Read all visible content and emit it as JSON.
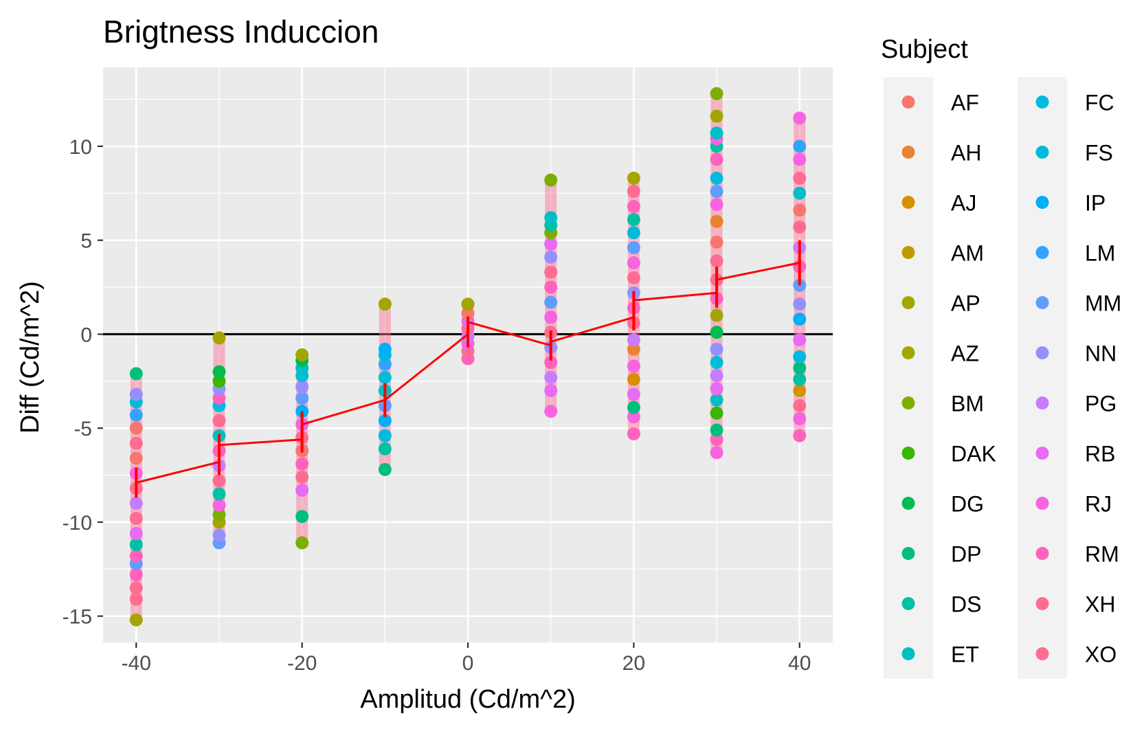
{
  "chart_data": {
    "type": "scatter",
    "title": "Brigtness Induccion",
    "xlabel": "Amplitud (Cd/m^2)",
    "ylabel": "Diff (Cd/m^2)",
    "xlim": [
      -44,
      44
    ],
    "ylim": [
      -16.4,
      14.2
    ],
    "x_ticks": [
      -40,
      -20,
      0,
      20,
      40
    ],
    "x_minor": [
      -30,
      -10,
      10,
      30
    ],
    "y_ticks": [
      -15,
      -10,
      -5,
      0,
      5,
      10
    ],
    "grid": true,
    "panel_background": "#EBEBEB",
    "reference_line": {
      "y": 0,
      "color": "#000000"
    },
    "legend": {
      "title": "Subject",
      "position": "right",
      "columns": 2,
      "entries": [
        {
          "name": "AF",
          "color": "#F8766D"
        },
        {
          "name": "AH",
          "color": "#EA8331"
        },
        {
          "name": "AJ",
          "color": "#D89000"
        },
        {
          "name": "AM",
          "color": "#C09B00"
        },
        {
          "name": "AP",
          "color": "#A3A500"
        },
        {
          "name": "AZ",
          "color": "#A3A500"
        },
        {
          "name": "BM",
          "color": "#7CAE00"
        },
        {
          "name": "DAK",
          "color": "#39B600"
        },
        {
          "name": "DG",
          "color": "#00BB4E"
        },
        {
          "name": "DP",
          "color": "#00BF7D"
        },
        {
          "name": "DS",
          "color": "#00C1A3"
        },
        {
          "name": "ET",
          "color": "#00BFC4"
        },
        {
          "name": "FC",
          "color": "#00BAE0"
        },
        {
          "name": "FS",
          "color": "#00BCD8"
        },
        {
          "name": "IP",
          "color": "#00B0F6"
        },
        {
          "name": "LM",
          "color": "#35A2FF"
        },
        {
          "name": "MM",
          "color": "#619CFF"
        },
        {
          "name": "NN",
          "color": "#9590FF"
        },
        {
          "name": "PG",
          "color": "#C77CFF"
        },
        {
          "name": "RB",
          "color": "#E76BF3"
        },
        {
          "name": "RJ",
          "color": "#F763E0"
        },
        {
          "name": "RM",
          "color": "#FF62BC"
        },
        {
          "name": "XH",
          "color": "#FF6C91"
        },
        {
          "name": "XO",
          "color": "#FF6C91"
        }
      ]
    },
    "mean_line": {
      "color": "#FF0000",
      "points": [
        {
          "x": -40,
          "y": -7.9,
          "err": 0.8
        },
        {
          "x": -30,
          "y": -6.8,
          "err": 0.7
        },
        {
          "x": -30,
          "y": -5.9,
          "err": 0.6
        },
        {
          "x": -20,
          "y": -5.6,
          "err": 0.7
        },
        {
          "x": -20,
          "y": -4.8,
          "err": 0.7
        },
        {
          "x": -10,
          "y": -3.5,
          "err": 0.9
        },
        {
          "x": 0,
          "y": 0.0,
          "err": 0.7
        },
        {
          "x": 0,
          "y": 0.65,
          "err": 0.3
        },
        {
          "x": 10,
          "y": -0.6,
          "err": 0.8
        },
        {
          "x": 10,
          "y": -0.4,
          "err": 0.6
        },
        {
          "x": 20,
          "y": 0.9,
          "err": 0.7
        },
        {
          "x": 20,
          "y": 1.8,
          "err": 0.5
        },
        {
          "x": 30,
          "y": 2.2,
          "err": 0.8
        },
        {
          "x": 30,
          "y": 2.9,
          "err": 0.7
        },
        {
          "x": 40,
          "y": 3.8,
          "err": 1.2
        }
      ]
    },
    "series_ranges": [
      {
        "x": -40,
        "min": -15.2,
        "max": -2.1
      },
      {
        "x": -30,
        "min": -11.1,
        "max": -0.2
      },
      {
        "x": -20,
        "min": -11.1,
        "max": -1.1
      },
      {
        "x": -10,
        "min": -7.2,
        "max": 1.6
      },
      {
        "x": 0,
        "min": -1.3,
        "max": 1.6
      },
      {
        "x": 10,
        "min": -4.1,
        "max": 8.2
      },
      {
        "x": 20,
        "min": -5.3,
        "max": 8.3
      },
      {
        "x": 30,
        "min": -6.3,
        "max": 12.8
      },
      {
        "x": 40,
        "min": -5.4,
        "max": 11.5
      }
    ],
    "points": [
      {
        "x": -40,
        "y": -15.2,
        "subject": "AZ"
      },
      {
        "x": -40,
        "y": -14.1,
        "subject": "XO"
      },
      {
        "x": -40,
        "y": -13.5,
        "subject": "XH"
      },
      {
        "x": -40,
        "y": -12.8,
        "subject": "RM"
      },
      {
        "x": -40,
        "y": -12.2,
        "subject": "MM"
      },
      {
        "x": -40,
        "y": -11.8,
        "subject": "RM"
      },
      {
        "x": -40,
        "y": -11.2,
        "subject": "DS"
      },
      {
        "x": -40,
        "y": -10.6,
        "subject": "RB"
      },
      {
        "x": -40,
        "y": -9.8,
        "subject": "XH"
      },
      {
        "x": -40,
        "y": -9.0,
        "subject": "PG"
      },
      {
        "x": -40,
        "y": -8.2,
        "subject": "XO"
      },
      {
        "x": -40,
        "y": -7.4,
        "subject": "RJ"
      },
      {
        "x": -40,
        "y": -6.6,
        "subject": "AF"
      },
      {
        "x": -40,
        "y": -5.8,
        "subject": "XH"
      },
      {
        "x": -40,
        "y": -5.0,
        "subject": "AF"
      },
      {
        "x": -40,
        "y": -4.3,
        "subject": "LM"
      },
      {
        "x": -40,
        "y": -3.6,
        "subject": "FS"
      },
      {
        "x": -40,
        "y": -3.2,
        "subject": "NN"
      },
      {
        "x": -40,
        "y": -2.1,
        "subject": "DP"
      },
      {
        "x": -30,
        "y": -11.1,
        "subject": "MM"
      },
      {
        "x": -30,
        "y": -10.7,
        "subject": "NN"
      },
      {
        "x": -30,
        "y": -10.0,
        "subject": "AZ"
      },
      {
        "x": -30,
        "y": -9.6,
        "subject": "BM"
      },
      {
        "x": -30,
        "y": -9.1,
        "subject": "RJ"
      },
      {
        "x": -30,
        "y": -8.5,
        "subject": "DS"
      },
      {
        "x": -30,
        "y": -7.8,
        "subject": "XH"
      },
      {
        "x": -30,
        "y": -7.0,
        "subject": "PG"
      },
      {
        "x": -30,
        "y": -6.2,
        "subject": "RM"
      },
      {
        "x": -30,
        "y": -5.4,
        "subject": "ET"
      },
      {
        "x": -30,
        "y": -4.6,
        "subject": "XO"
      },
      {
        "x": -30,
        "y": -3.8,
        "subject": "FC"
      },
      {
        "x": -30,
        "y": -3.4,
        "subject": "RM"
      },
      {
        "x": -30,
        "y": -2.9,
        "subject": "NN"
      },
      {
        "x": -30,
        "y": -2.5,
        "subject": "DAK"
      },
      {
        "x": -30,
        "y": -2.0,
        "subject": "DG"
      },
      {
        "x": -30,
        "y": -0.2,
        "subject": "AZ"
      },
      {
        "x": -20,
        "y": -11.1,
        "subject": "BM"
      },
      {
        "x": -20,
        "y": -9.7,
        "subject": "DP"
      },
      {
        "x": -20,
        "y": -8.3,
        "subject": "RB"
      },
      {
        "x": -20,
        "y": -7.6,
        "subject": "XH"
      },
      {
        "x": -20,
        "y": -6.9,
        "subject": "RM"
      },
      {
        "x": -20,
        "y": -6.2,
        "subject": "AF"
      },
      {
        "x": -20,
        "y": -5.5,
        "subject": "XO"
      },
      {
        "x": -20,
        "y": -4.8,
        "subject": "RJ"
      },
      {
        "x": -20,
        "y": -4.1,
        "subject": "IP"
      },
      {
        "x": -20,
        "y": -3.4,
        "subject": "MM"
      },
      {
        "x": -20,
        "y": -2.8,
        "subject": "NN"
      },
      {
        "x": -20,
        "y": -2.2,
        "subject": "FS"
      },
      {
        "x": -20,
        "y": -1.8,
        "subject": "ET"
      },
      {
        "x": -20,
        "y": -1.4,
        "subject": "DG"
      },
      {
        "x": -20,
        "y": -1.1,
        "subject": "AP"
      },
      {
        "x": -10,
        "y": -7.2,
        "subject": "DP"
      },
      {
        "x": -10,
        "y": -6.1,
        "subject": "DS"
      },
      {
        "x": -10,
        "y": -5.4,
        "subject": "FC"
      },
      {
        "x": -10,
        "y": -4.6,
        "subject": "IP"
      },
      {
        "x": -10,
        "y": -3.8,
        "subject": "MM"
      },
      {
        "x": -10,
        "y": -3.0,
        "subject": "ET"
      },
      {
        "x": -10,
        "y": -2.3,
        "subject": "FS"
      },
      {
        "x": -10,
        "y": -1.6,
        "subject": "LM"
      },
      {
        "x": -10,
        "y": -1.1,
        "subject": "FC"
      },
      {
        "x": -10,
        "y": -0.8,
        "subject": "IP"
      },
      {
        "x": -10,
        "y": 1.6,
        "subject": "AP"
      },
      {
        "x": 0,
        "y": -1.3,
        "subject": "RM"
      },
      {
        "x": 0,
        "y": -0.9,
        "subject": "XH"
      },
      {
        "x": 0,
        "y": -0.5,
        "subject": "RJ"
      },
      {
        "x": 0,
        "y": -0.1,
        "subject": "PG"
      },
      {
        "x": 0,
        "y": 0.3,
        "subject": "XO"
      },
      {
        "x": 0,
        "y": 0.7,
        "subject": "RB"
      },
      {
        "x": 0,
        "y": 1.1,
        "subject": "AF"
      },
      {
        "x": 0,
        "y": 1.6,
        "subject": "AP"
      },
      {
        "x": 10,
        "y": -4.1,
        "subject": "RJ"
      },
      {
        "x": 10,
        "y": -3.0,
        "subject": "RB"
      },
      {
        "x": 10,
        "y": -2.3,
        "subject": "PG"
      },
      {
        "x": 10,
        "y": -1.5,
        "subject": "RM"
      },
      {
        "x": 10,
        "y": -0.7,
        "subject": "NN"
      },
      {
        "x": 10,
        "y": 0.1,
        "subject": "XH"
      },
      {
        "x": 10,
        "y": 0.9,
        "subject": "RJ"
      },
      {
        "x": 10,
        "y": 1.7,
        "subject": "MM"
      },
      {
        "x": 10,
        "y": 2.5,
        "subject": "RM"
      },
      {
        "x": 10,
        "y": 3.3,
        "subject": "XO"
      },
      {
        "x": 10,
        "y": 4.1,
        "subject": "NN"
      },
      {
        "x": 10,
        "y": 4.8,
        "subject": "RB"
      },
      {
        "x": 10,
        "y": 5.4,
        "subject": "BM"
      },
      {
        "x": 10,
        "y": 5.8,
        "subject": "DS"
      },
      {
        "x": 10,
        "y": 6.2,
        "subject": "ET"
      },
      {
        "x": 10,
        "y": 8.2,
        "subject": "BM"
      },
      {
        "x": 20,
        "y": -5.3,
        "subject": "RM"
      },
      {
        "x": 20,
        "y": -4.4,
        "subject": "RJ"
      },
      {
        "x": 20,
        "y": -3.9,
        "subject": "DP"
      },
      {
        "x": 20,
        "y": -3.2,
        "subject": "RB"
      },
      {
        "x": 20,
        "y": -2.4,
        "subject": "AJ"
      },
      {
        "x": 20,
        "y": -1.7,
        "subject": "RJ"
      },
      {
        "x": 20,
        "y": -0.8,
        "subject": "AH"
      },
      {
        "x": 20,
        "y": -0.3,
        "subject": "PG"
      },
      {
        "x": 20,
        "y": 0.6,
        "subject": "XH"
      },
      {
        "x": 20,
        "y": 1.4,
        "subject": "RM"
      },
      {
        "x": 20,
        "y": 2.2,
        "subject": "NN"
      },
      {
        "x": 20,
        "y": 3.0,
        "subject": "XO"
      },
      {
        "x": 20,
        "y": 3.8,
        "subject": "RJ"
      },
      {
        "x": 20,
        "y": 4.6,
        "subject": "MM"
      },
      {
        "x": 20,
        "y": 5.4,
        "subject": "FS"
      },
      {
        "x": 20,
        "y": 6.1,
        "subject": "DS"
      },
      {
        "x": 20,
        "y": 6.8,
        "subject": "RM"
      },
      {
        "x": 20,
        "y": 7.6,
        "subject": "XH"
      },
      {
        "x": 20,
        "y": 8.3,
        "subject": "AP"
      },
      {
        "x": 30,
        "y": -6.3,
        "subject": "RJ"
      },
      {
        "x": 30,
        "y": -5.6,
        "subject": "RM"
      },
      {
        "x": 30,
        "y": -5.1,
        "subject": "DP"
      },
      {
        "x": 30,
        "y": -4.2,
        "subject": "DAK"
      },
      {
        "x": 30,
        "y": -3.5,
        "subject": "ET"
      },
      {
        "x": 30,
        "y": -2.9,
        "subject": "RB"
      },
      {
        "x": 30,
        "y": -2.2,
        "subject": "PG"
      },
      {
        "x": 30,
        "y": -1.5,
        "subject": "FS"
      },
      {
        "x": 30,
        "y": -0.8,
        "subject": "NN"
      },
      {
        "x": 30,
        "y": 0.1,
        "subject": "DG"
      },
      {
        "x": 30,
        "y": 1.0,
        "subject": "AP"
      },
      {
        "x": 30,
        "y": 1.9,
        "subject": "RM"
      },
      {
        "x": 30,
        "y": 2.9,
        "subject": "XH"
      },
      {
        "x": 30,
        "y": 3.9,
        "subject": "XO"
      },
      {
        "x": 30,
        "y": 4.9,
        "subject": "AF"
      },
      {
        "x": 30,
        "y": 6.0,
        "subject": "AH"
      },
      {
        "x": 30,
        "y": 6.9,
        "subject": "RJ"
      },
      {
        "x": 30,
        "y": 7.6,
        "subject": "MM"
      },
      {
        "x": 30,
        "y": 8.3,
        "subject": "FC"
      },
      {
        "x": 30,
        "y": 9.3,
        "subject": "RM"
      },
      {
        "x": 30,
        "y": 10.0,
        "subject": "DS"
      },
      {
        "x": 30,
        "y": 10.4,
        "subject": "RJ"
      },
      {
        "x": 30,
        "y": 10.7,
        "subject": "ET"
      },
      {
        "x": 30,
        "y": 11.6,
        "subject": "AP"
      },
      {
        "x": 30,
        "y": 12.8,
        "subject": "BM"
      },
      {
        "x": 40,
        "y": -5.4,
        "subject": "RM"
      },
      {
        "x": 40,
        "y": -4.5,
        "subject": "RJ"
      },
      {
        "x": 40,
        "y": -3.8,
        "subject": "XH"
      },
      {
        "x": 40,
        "y": -3.0,
        "subject": "AJ"
      },
      {
        "x": 40,
        "y": -2.4,
        "subject": "DS"
      },
      {
        "x": 40,
        "y": -1.8,
        "subject": "DP"
      },
      {
        "x": 40,
        "y": -1.2,
        "subject": "FC"
      },
      {
        "x": 40,
        "y": -0.3,
        "subject": "RB"
      },
      {
        "x": 40,
        "y": 0.8,
        "subject": "IP"
      },
      {
        "x": 40,
        "y": 1.6,
        "subject": "NN"
      },
      {
        "x": 40,
        "y": 2.6,
        "subject": "MM"
      },
      {
        "x": 40,
        "y": 3.6,
        "subject": "RM"
      },
      {
        "x": 40,
        "y": 4.6,
        "subject": "PG"
      },
      {
        "x": 40,
        "y": 5.7,
        "subject": "XO"
      },
      {
        "x": 40,
        "y": 6.6,
        "subject": "AF"
      },
      {
        "x": 40,
        "y": 7.5,
        "subject": "ET"
      },
      {
        "x": 40,
        "y": 8.3,
        "subject": "XH"
      },
      {
        "x": 40,
        "y": 9.3,
        "subject": "RJ"
      },
      {
        "x": 40,
        "y": 10.0,
        "subject": "LM"
      },
      {
        "x": 40,
        "y": 11.5,
        "subject": "RJ"
      }
    ]
  }
}
